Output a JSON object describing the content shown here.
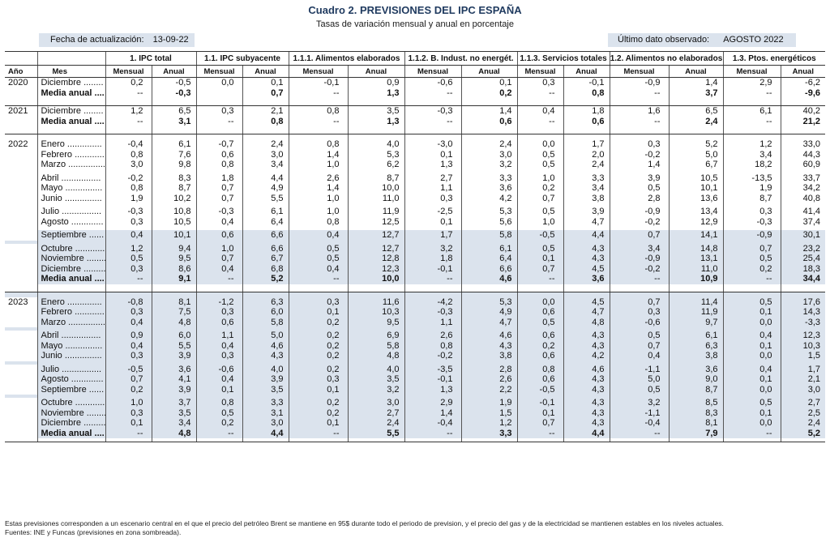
{
  "header": {
    "title": "Cuadro 2. PREVISIONES DEL IPC ESPAÑA",
    "subtitle": "Tasas de variación mensual y anual en porcentaje",
    "update_label": "Fecha de actualización:",
    "update_value": "13-09-22",
    "last_label": "Último dato observado:",
    "last_value": "AGOSTO 2022"
  },
  "columns": {
    "year": "Año",
    "month": "Mes",
    "sub": [
      "Mensual",
      "Anual"
    ],
    "groups": [
      "1. IPC total",
      "1.1. IPC subyacente",
      "1.1.1. Alimentos elaborados",
      "1.1.2. B. Indust. no energét.",
      "1.1.3. Servicios totales",
      "1.2. Alimentos no elaborados",
      "1.3. Ptos. energéticos"
    ]
  },
  "rows": [
    {
      "y": "2020",
      "m": "Diciembre ........",
      "v": [
        "0,2",
        "-0,5",
        "0,0",
        "0,1",
        "-0,1",
        "0,9",
        "-0,6",
        "0,1",
        "0,3",
        "-0,1",
        "-0,9",
        "1,4",
        "2,9",
        "-6,2"
      ]
    },
    {
      "y": "",
      "m": "Media anual ....",
      "bold": true,
      "v": [
        "--",
        "-0,3",
        "",
        "0,7",
        "--",
        "1,3",
        "--",
        "0,2",
        "--",
        "0,8",
        "--",
        "3,7",
        "--",
        "-9,6"
      ]
    },
    {
      "y": "2021",
      "m": "Diciembre ........",
      "v": [
        "1,2",
        "6,5",
        "0,3",
        "2,1",
        "0,8",
        "3,5",
        "-0,3",
        "1,4",
        "0,4",
        "1,8",
        "1,6",
        "6,5",
        "6,1",
        "40,2"
      ]
    },
    {
      "y": "",
      "m": "Media anual ....",
      "bold": true,
      "v": [
        "--",
        "3,1",
        "--",
        "0,8",
        "--",
        "1,3",
        "--",
        "0,6",
        "--",
        "0,6",
        "--",
        "2,4",
        "--",
        "21,2"
      ]
    },
    {
      "y": "2022",
      "m": "Enero ..............",
      "v": [
        "-0,4",
        "6,1",
        "-0,7",
        "2,4",
        "0,8",
        "4,0",
        "-3,0",
        "2,4",
        "0,0",
        "1,7",
        "0,3",
        "5,2",
        "1,2",
        "33,0"
      ]
    },
    {
      "y": "",
      "m": "Febrero ............",
      "v": [
        "0,8",
        "7,6",
        "0,6",
        "3,0",
        "1,4",
        "5,3",
        "0,1",
        "3,0",
        "0,5",
        "2,0",
        "-0,2",
        "5,0",
        "3,4",
        "44,3"
      ]
    },
    {
      "y": "",
      "m": "Marzo ...............",
      "v": [
        "3,0",
        "9,8",
        "0,8",
        "3,4",
        "1,0",
        "6,2",
        "1,3",
        "3,2",
        "0,5",
        "2,4",
        "1,4",
        "6,7",
        "18,2",
        "60,9"
      ]
    },
    {
      "y": "",
      "m": "Abril ................",
      "v": [
        "-0,2",
        "8,3",
        "1,8",
        "4,4",
        "2,6",
        "8,7",
        "2,7",
        "3,3",
        "1,0",
        "3,3",
        "3,9",
        "10,5",
        "-13,5",
        "33,7"
      ]
    },
    {
      "y": "",
      "m": "Mayo ...............",
      "v": [
        "0,8",
        "8,7",
        "0,7",
        "4,9",
        "1,4",
        "10,0",
        "1,1",
        "3,6",
        "0,2",
        "3,4",
        "0,5",
        "10,1",
        "1,9",
        "34,2"
      ]
    },
    {
      "y": "",
      "m": "Junio ...............",
      "v": [
        "1,9",
        "10,2",
        "0,7",
        "5,5",
        "1,0",
        "11,0",
        "0,3",
        "4,2",
        "0,7",
        "3,8",
        "2,8",
        "13,6",
        "8,7",
        "40,8"
      ]
    },
    {
      "y": "",
      "m": "Julio ................",
      "v": [
        "-0,3",
        "10,8",
        "-0,3",
        "6,1",
        "1,0",
        "11,9",
        "-2,5",
        "5,3",
        "0,5",
        "3,9",
        "-0,9",
        "13,4",
        "0,3",
        "41,4"
      ]
    },
    {
      "y": "",
      "m": "Agosto .............",
      "v": [
        "0,3",
        "10,5",
        "0,4",
        "6,4",
        "0,8",
        "12,5",
        "0,1",
        "5,6",
        "1,0",
        "4,7",
        "-0,2",
        "12,9",
        "-0,3",
        "37,4"
      ]
    },
    {
      "y": "",
      "m": "Septiembre ......",
      "shade": true,
      "v": [
        "0,4",
        "10,1",
        "0,6",
        "6,6",
        "0,4",
        "12,7",
        "1,7",
        "5,8",
        "-0,5",
        "4,4",
        "0,7",
        "14,1",
        "-0,9",
        "30,1"
      ]
    },
    {
      "y": "",
      "m": "Octubre ............",
      "shade": true,
      "v": [
        "1,2",
        "9,4",
        "1,0",
        "6,6",
        "0,5",
        "12,7",
        "3,2",
        "6,1",
        "0,5",
        "4,3",
        "3,4",
        "14,8",
        "0,7",
        "23,2"
      ]
    },
    {
      "y": "",
      "m": "Noviembre ........",
      "shade": true,
      "v": [
        "0,5",
        "9,5",
        "0,7",
        "6,7",
        "0,5",
        "12,8",
        "1,8",
        "6,4",
        "0,1",
        "4,3",
        "-0,9",
        "13,1",
        "0,5",
        "25,4"
      ]
    },
    {
      "y": "",
      "m": "Diciembre .........",
      "shade": true,
      "v": [
        "0,3",
        "8,6",
        "0,4",
        "6,8",
        "0,4",
        "12,3",
        "-0,1",
        "6,6",
        "0,7",
        "4,5",
        "-0,2",
        "11,0",
        "0,2",
        "18,3"
      ]
    },
    {
      "y": "",
      "m": "Media anual ....",
      "bold": true,
      "shade": true,
      "v": [
        "--",
        "9,1",
        "--",
        "5,2",
        "--",
        "10,0",
        "--",
        "4,6",
        "--",
        "3,6",
        "--",
        "10,9",
        "--",
        "34,4"
      ]
    },
    {
      "y": "2023",
      "m": "Enero ..............",
      "shade": true,
      "v": [
        "-0,8",
        "8,1",
        "-1,2",
        "6,3",
        "0,3",
        "11,6",
        "-4,2",
        "5,3",
        "0,0",
        "4,5",
        "0,7",
        "11,4",
        "0,5",
        "17,6"
      ]
    },
    {
      "y": "",
      "m": "Febrero ............",
      "shade": true,
      "v": [
        "0,3",
        "7,5",
        "0,3",
        "6,0",
        "0,1",
        "10,3",
        "-0,3",
        "4,9",
        "0,6",
        "4,7",
        "0,3",
        "11,9",
        "0,1",
        "14,3"
      ]
    },
    {
      "y": "",
      "m": "Marzo ...............",
      "shade": true,
      "v": [
        "0,4",
        "4,8",
        "0,6",
        "5,8",
        "0,2",
        "9,5",
        "1,1",
        "4,7",
        "0,5",
        "4,8",
        "-0,6",
        "9,7",
        "0,0",
        "-3,3"
      ]
    },
    {
      "y": "",
      "m": "Abril ................",
      "shade": true,
      "v": [
        "0,9",
        "6,0",
        "1,1",
        "5,0",
        "0,2",
        "6,9",
        "2,6",
        "4,6",
        "0,6",
        "4,3",
        "0,5",
        "6,1",
        "0,4",
        "12,3"
      ]
    },
    {
      "y": "",
      "m": "Mayo ...............",
      "shade": true,
      "v": [
        "0,4",
        "5,5",
        "0,4",
        "4,6",
        "0,2",
        "5,8",
        "0,8",
        "4,3",
        "0,2",
        "4,3",
        "0,7",
        "6,3",
        "0,1",
        "10,3"
      ]
    },
    {
      "y": "",
      "m": "Junio ...............",
      "shade": true,
      "v": [
        "0,3",
        "3,9",
        "0,3",
        "4,3",
        "0,2",
        "4,8",
        "-0,2",
        "3,8",
        "0,6",
        "4,2",
        "0,4",
        "3,8",
        "0,0",
        "1,5"
      ]
    },
    {
      "y": "",
      "m": "Julio ................",
      "shade": true,
      "v": [
        "-0,5",
        "3,6",
        "-0,6",
        "4,0",
        "0,2",
        "4,0",
        "-3,5",
        "2,8",
        "0,8",
        "4,6",
        "-1,1",
        "3,6",
        "0,4",
        "1,7"
      ]
    },
    {
      "y": "",
      "m": "Agosto .............",
      "shade": true,
      "v": [
        "0,7",
        "4,1",
        "0,4",
        "3,9",
        "0,3",
        "3,5",
        "-0,1",
        "2,6",
        "0,6",
        "4,3",
        "5,0",
        "9,0",
        "0,1",
        "2,1"
      ]
    },
    {
      "y": "",
      "m": "Septiembre ......",
      "shade": true,
      "v": [
        "0,2",
        "3,9",
        "0,1",
        "3,5",
        "0,1",
        "3,2",
        "1,3",
        "2,2",
        "-0,5",
        "4,3",
        "0,5",
        "8,7",
        "0,0",
        "3,0"
      ]
    },
    {
      "y": "",
      "m": "Octubre ............",
      "shade": true,
      "v": [
        "1,0",
        "3,7",
        "0,8",
        "3,3",
        "0,2",
        "3,0",
        "2,9",
        "1,9",
        "-0,1",
        "4,3",
        "3,2",
        "8,5",
        "0,5",
        "2,7"
      ]
    },
    {
      "y": "",
      "m": "Noviembre ........",
      "shade": true,
      "v": [
        "0,3",
        "3,5",
        "0,5",
        "3,1",
        "0,2",
        "2,7",
        "1,4",
        "1,5",
        "0,1",
        "4,3",
        "-1,1",
        "8,3",
        "0,1",
        "2,5"
      ]
    },
    {
      "y": "",
      "m": "Diciembre .........",
      "shade": true,
      "v": [
        "0,1",
        "3,4",
        "0,2",
        "3,0",
        "0,1",
        "2,4",
        "-0,4",
        "1,2",
        "0,7",
        "4,3",
        "-0,4",
        "8,1",
        "0,0",
        "2,4"
      ]
    },
    {
      "y": "",
      "m": "Media anual ....",
      "bold": true,
      "shade": true,
      "v": [
        "--",
        "4,8",
        "--",
        "4,4",
        "--",
        "5,5",
        "--",
        "3,3",
        "--",
        "4,4",
        "--",
        "7,9",
        "--",
        "5,2"
      ]
    }
  ],
  "footnote": {
    "line1": "Estas previsiones corresponden a un escenario central en el que el precio del petróleo Brent se mantiene en 95$ durante todo el periodo de prevision, y el precio del gas y de la electricidad se mantienen estables en los niveles actuales.",
    "line2": "Fuentes: INE y Funcas (previsiones en zona sombreada)."
  }
}
